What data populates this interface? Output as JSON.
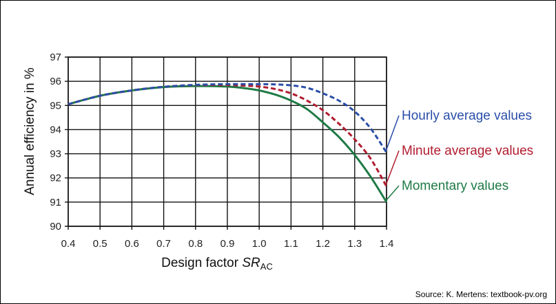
{
  "chart_data": {
    "type": "line",
    "xlabel_main": "Design factor ",
    "xlabel_italic": "SR",
    "xlabel_sub": "AC",
    "ylabel": "Annual efficiency in %",
    "xlim": [
      0.4,
      1.4
    ],
    "ylim": [
      90,
      97
    ],
    "x_ticks": [
      "0.4",
      "0.5",
      "0.6",
      "0.7",
      "0.8",
      "0.9",
      "1.0",
      "1.1",
      "1.2",
      "1.3",
      "1.4"
    ],
    "y_ticks": [
      "90",
      "91",
      "92",
      "93",
      "94",
      "95",
      "96",
      "97"
    ],
    "grid": true,
    "series": [
      {
        "name": "Hourly average values",
        "color": "#2a4ea8",
        "dash": "dashed",
        "x": [
          0.4,
          0.5,
          0.6,
          0.7,
          0.8,
          0.9,
          1.0,
          1.05,
          1.1,
          1.15,
          1.2,
          1.25,
          1.3,
          1.35,
          1.4
        ],
        "y": [
          95.05,
          95.4,
          95.62,
          95.77,
          95.85,
          95.88,
          95.88,
          95.87,
          95.83,
          95.73,
          95.5,
          95.2,
          94.75,
          94.05,
          93.05
        ]
      },
      {
        "name": "Minute average values",
        "color": "#b01c2e",
        "dash": "dashed",
        "x": [
          0.4,
          0.5,
          0.6,
          0.7,
          0.8,
          0.9,
          0.95,
          1.0,
          1.05,
          1.1,
          1.15,
          1.2,
          1.25,
          1.3,
          1.35,
          1.4
        ],
        "y": [
          95.05,
          95.4,
          95.62,
          95.77,
          95.84,
          95.84,
          95.82,
          95.78,
          95.68,
          95.5,
          95.2,
          94.8,
          94.25,
          93.6,
          92.8,
          91.65
        ]
      },
      {
        "name": "Momentary values",
        "color": "#1e7a45",
        "dash": "solid",
        "x": [
          0.4,
          0.5,
          0.6,
          0.7,
          0.8,
          0.9,
          0.95,
          1.0,
          1.05,
          1.1,
          1.15,
          1.2,
          1.25,
          1.3,
          1.35,
          1.4
        ],
        "y": [
          95.05,
          95.4,
          95.62,
          95.76,
          95.8,
          95.78,
          95.72,
          95.62,
          95.45,
          95.2,
          94.85,
          94.3,
          93.7,
          92.95,
          92.05,
          91.0
        ]
      }
    ]
  },
  "source": "Source: K. Mertens: textbook-pv.org"
}
